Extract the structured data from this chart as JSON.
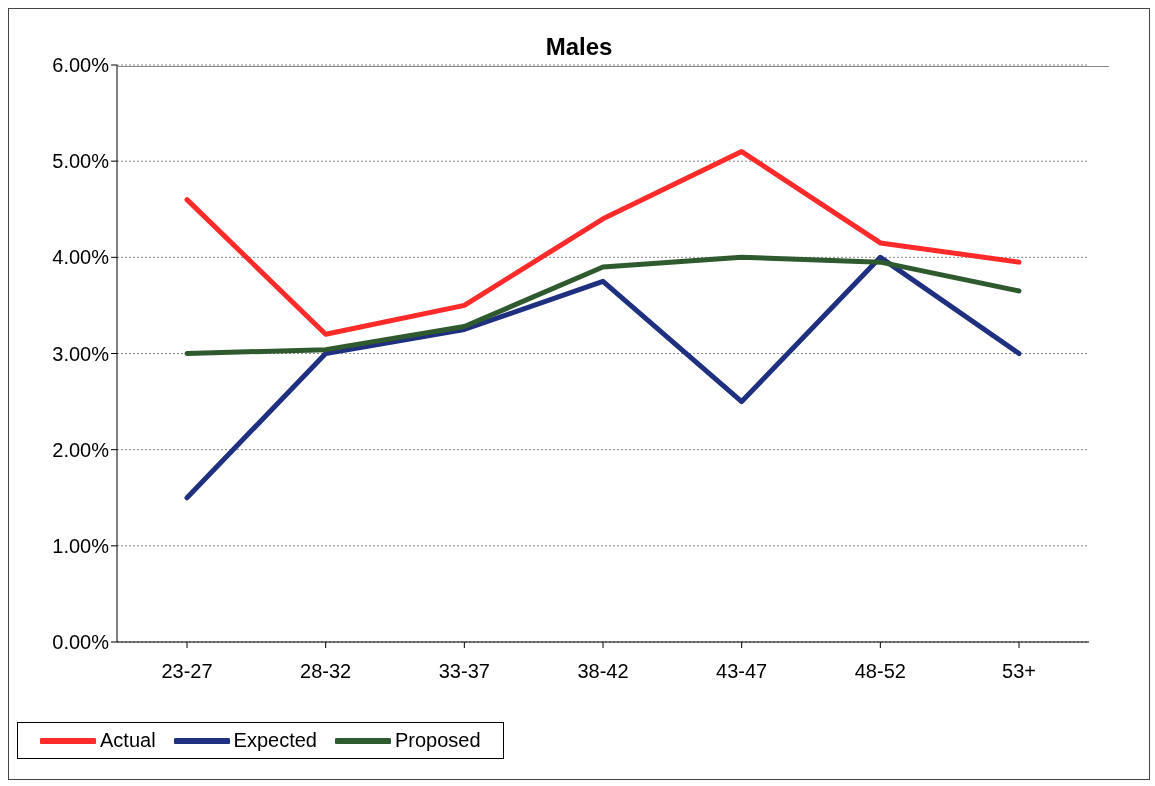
{
  "chart_data": {
    "type": "line",
    "title": "Males",
    "categories": [
      "23-27",
      "28-32",
      "33-37",
      "38-42",
      "43-47",
      "48-52",
      "53+"
    ],
    "series": [
      {
        "name": "Actual",
        "color": "#ff2a2a",
        "values": [
          4.6,
          3.2,
          3.5,
          4.4,
          5.1,
          4.15,
          3.95
        ]
      },
      {
        "name": "Expected",
        "color": "#1f3080",
        "values": [
          1.5,
          3.0,
          3.25,
          3.75,
          2.5,
          4.0,
          3.0
        ]
      },
      {
        "name": "Proposed",
        "color": "#2f5a2f",
        "values": [
          3.0,
          3.04,
          3.28,
          3.9,
          4.0,
          3.95,
          3.65
        ]
      }
    ],
    "ylim": [
      0,
      6
    ],
    "yticks": [
      {
        "value": 0,
        "label": "0.00%"
      },
      {
        "value": 1,
        "label": "1.00%"
      },
      {
        "value": 2,
        "label": "2.00%"
      },
      {
        "value": 3,
        "label": "3.00%"
      },
      {
        "value": 4,
        "label": "4.00%"
      },
      {
        "value": 5,
        "label": "5.00%"
      },
      {
        "value": 6,
        "label": "6.00%"
      }
    ],
    "grid": "y",
    "legend": "bottom",
    "marker": "none",
    "line_style": "solid"
  }
}
